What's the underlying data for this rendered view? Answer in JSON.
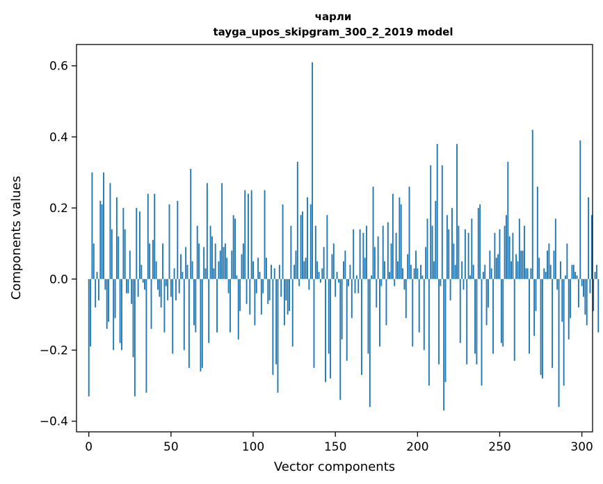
{
  "chart_data": {
    "type": "bar",
    "title": "чарли",
    "subtitle": "tayga_upos_skipgram_300_2_2019 model",
    "xlabel": "Vector components",
    "ylabel": "Components values",
    "xlim": [
      -7.5,
      306.5
    ],
    "ylim": [
      -0.43,
      0.66
    ],
    "xticks": [
      0,
      50,
      100,
      150,
      200,
      250,
      300
    ],
    "xtick_labels": [
      "0",
      "50",
      "100",
      "150",
      "200",
      "250",
      "300"
    ],
    "yticks": [
      -0.4,
      -0.2,
      0.0,
      0.2,
      0.4,
      0.6
    ],
    "ytick_labels": [
      "−0.4",
      "−0.2",
      "0.0",
      "0.2",
      "0.4",
      "0.6"
    ],
    "grid": false,
    "bar_color": "#1f77b4",
    "series": [
      {
        "values": [
          -0.33,
          -0.19,
          0.3,
          0.1,
          -0.08,
          0.02,
          -0.06,
          0.22,
          0.21,
          0.3,
          -0.03,
          -0.14,
          -0.12,
          0.27,
          0.14,
          -0.2,
          -0.11,
          0.23,
          0.12,
          -0.18,
          -0.2,
          0.2,
          0.14,
          -0.04,
          -0.04,
          0.08,
          -0.07,
          -0.22,
          -0.33,
          0.2,
          -0.05,
          0.19,
          0.04,
          -0.01,
          -0.03,
          -0.32,
          0.24,
          0.1,
          -0.14,
          0.11,
          0.24,
          0.05,
          -0.03,
          -0.05,
          -0.08,
          0.1,
          -0.15,
          -0.02,
          -0.06,
          0.21,
          -0.05,
          -0.21,
          0.03,
          -0.06,
          0.22,
          -0.04,
          0.07,
          0.02,
          -0.2,
          0.09,
          0.04,
          -0.25,
          0.31,
          0.05,
          -0.13,
          -0.15,
          0.15,
          0.1,
          -0.26,
          -0.25,
          0.09,
          0.03,
          0.27,
          -0.18,
          0.15,
          0.12,
          0.03,
          0.1,
          -0.15,
          0.05,
          0.08,
          0.27,
          0.09,
          0.1,
          0.06,
          -0.04,
          -0.15,
          0.08,
          0.18,
          0.17,
          0.01,
          -0.17,
          -0.09,
          0.07,
          0.1,
          0.25,
          -0.07,
          0.24,
          -0.1,
          0.25,
          0.05,
          -0.13,
          -0.04,
          0.06,
          0.02,
          -0.1,
          -0.04,
          0.25,
          0.06,
          -0.07,
          -0.06,
          0.04,
          -0.27,
          0.03,
          -0.24,
          -0.32,
          0.04,
          -0.05,
          0.21,
          -0.13,
          -0.06,
          -0.1,
          -0.09,
          0.15,
          -0.19,
          0.04,
          0.08,
          0.33,
          -0.02,
          0.18,
          0.19,
          0.05,
          0.06,
          0.23,
          -0.03,
          0.21,
          0.61,
          -0.25,
          0.15,
          0.05,
          0.02,
          -0.01,
          0.03,
          0.09,
          -0.29,
          0.18,
          -0.21,
          -0.28,
          0.07,
          0.1,
          -0.05,
          0.02,
          -0.01,
          -0.34,
          -0.17,
          0.05,
          0.08,
          -0.23,
          -0.02,
          0.04,
          -0.11,
          0.14,
          -0.04,
          0.01,
          -0.04,
          0.14,
          -0.27,
          0.13,
          0.06,
          0.15,
          -0.21,
          -0.36,
          0.01,
          0.26,
          0.09,
          -0.08,
          0.12,
          -0.19,
          -0.02,
          0.15,
          0.05,
          -0.13,
          0.16,
          0.02,
          0.1,
          0.24,
          -0.02,
          0.13,
          0.05,
          0.23,
          0.21,
          0.03,
          -0.03,
          -0.11,
          0.07,
          0.26,
          0.04,
          -0.19,
          0.03,
          0.08,
          0.03,
          -0.15,
          0.04,
          0.01,
          -0.2,
          0.09,
          0.17,
          -0.3,
          0.32,
          0.15,
          0.05,
          0.22,
          0.38,
          -0.24,
          -0.02,
          0.32,
          -0.37,
          -0.29,
          0.18,
          0.14,
          -0.06,
          0.2,
          0.1,
          0.04,
          0.38,
          0.15,
          -0.18,
          0.05,
          -0.03,
          0.14,
          -0.24,
          0.13,
          0.01,
          0.17,
          0.04,
          -0.21,
          -0.24,
          0.2,
          0.21,
          -0.3,
          0.02,
          0.04,
          -0.13,
          -0.08,
          0.08,
          0.03,
          -0.21,
          0.13,
          0.06,
          0.07,
          0.14,
          -0.18,
          -0.19,
          0.15,
          0.18,
          0.33,
          0.12,
          0.05,
          0.13,
          -0.23,
          0.07,
          0.05,
          0.17,
          0.08,
          0.08,
          0.15,
          0.03,
          0.03,
          -0.21,
          0.03,
          0.42,
          -0.16,
          -0.09,
          0.26,
          0.06,
          -0.27,
          -0.28,
          0.03,
          0.02,
          0.08,
          0.1,
          0.04,
          -0.25,
          0.08,
          0.17,
          -0.03,
          -0.36,
          0.05,
          -0.12,
          -0.3,
          0.01,
          0.1,
          -0.17,
          -0.11,
          0.04,
          0.04,
          0.02,
          0.01,
          -0.08,
          0.39,
          -0.02,
          -0.05,
          -0.1,
          -0.13,
          0.23,
          -0.04,
          0.18,
          -0.09,
          0.02,
          0.04,
          -0.15
        ]
      }
    ]
  }
}
